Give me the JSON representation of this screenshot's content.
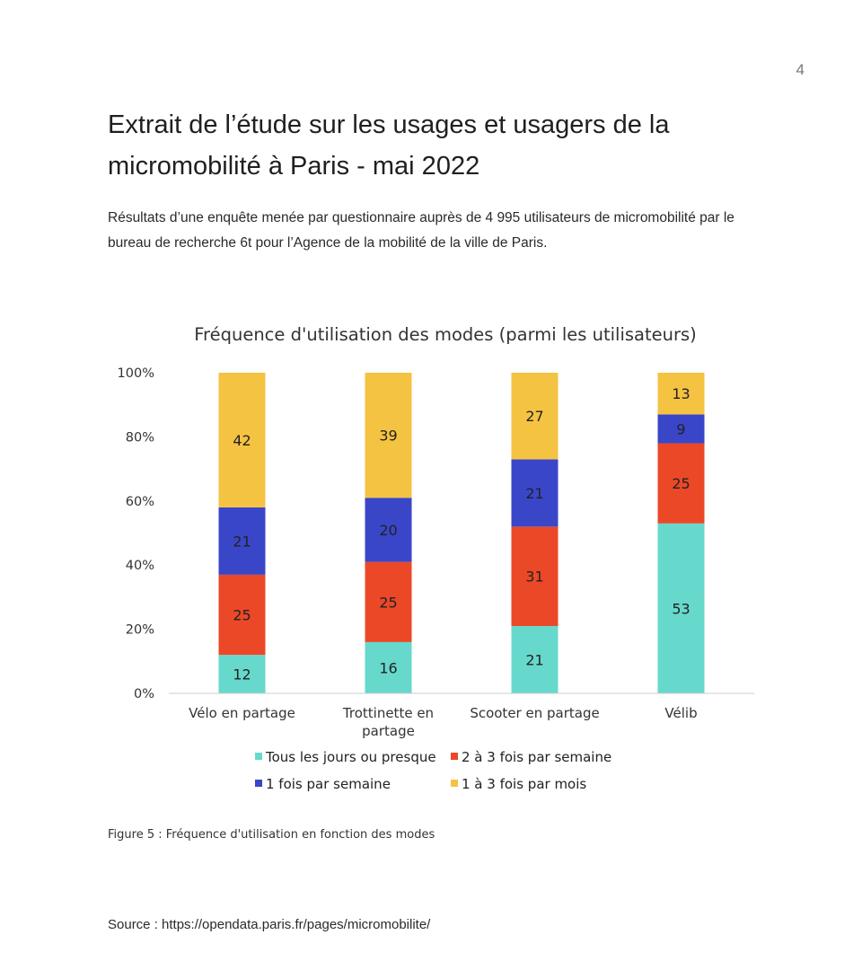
{
  "page": {
    "number": "4"
  },
  "document": {
    "title": "Extrait de l’étude sur les usages et usagers de la micromobilité à Paris - mai 2022",
    "intro": "Résultats d’une enquête menée par questionnaire auprès de 4 995 utilisateurs de micromobilité par le bureau de recherche 6t pour l’Agence de la mobilité de la ville de Paris.",
    "caption": "Figure 5 : Fréquence d'utilisation en fonction des modes",
    "source": "Source : https://opendata.paris.fr/pages/micromobilite/"
  },
  "chart_data": {
    "type": "bar",
    "stacked": true,
    "title": "Fréquence d'utilisation des modes (parmi les utilisateurs)",
    "xlabel": "",
    "ylabel": "",
    "ylim": [
      0,
      100
    ],
    "yticks": [
      "0%",
      "20%",
      "40%",
      "60%",
      "80%",
      "100%"
    ],
    "categories": [
      "Vélo en partage",
      "Trottinette en partage",
      "Scooter en partage",
      "Vélib"
    ],
    "legend_placement": "bottom",
    "grid": false,
    "series": [
      {
        "name": "Tous les jours ou presque",
        "color": "#66D9CC",
        "values": [
          12,
          16,
          21,
          53
        ]
      },
      {
        "name": "2 à 3 fois par semaine",
        "color": "#EB4828",
        "values": [
          25,
          25,
          31,
          25
        ]
      },
      {
        "name": "1 fois par semaine",
        "color": "#3A46C8",
        "values": [
          21,
          20,
          21,
          9
        ]
      },
      {
        "name": "1 à 3 fois par mois",
        "color": "#F5C342",
        "values": [
          42,
          39,
          27,
          13
        ]
      }
    ]
  }
}
